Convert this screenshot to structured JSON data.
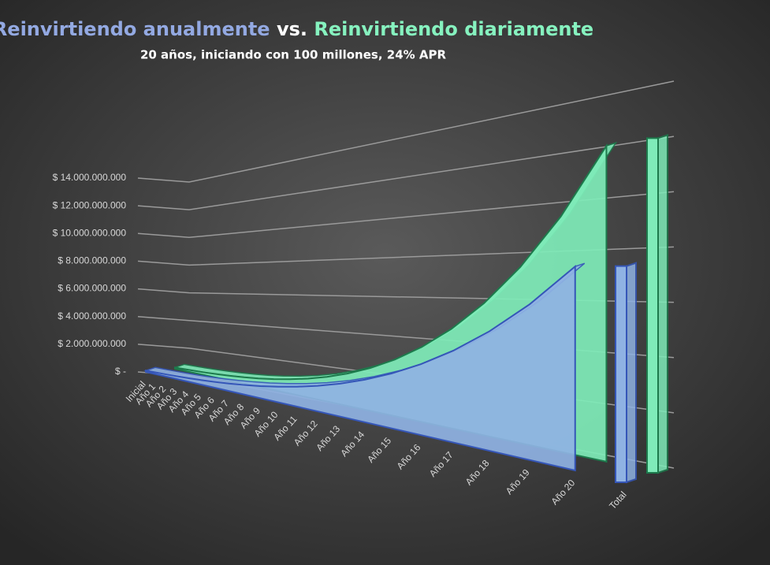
{
  "chart_data": {
    "type": "area3d",
    "title_parts": [
      "Reinvirtiendo anualmente",
      "vs.",
      "Reinvirtiendo diariamente"
    ],
    "subtitle": "20 años, iniciando con 100 millones, 24% APR",
    "categories": [
      "Inicial",
      "Año 1",
      "Año 2",
      "Año 3",
      "Año 4",
      "Año 5",
      "Año 6",
      "Año 7",
      "Año 8",
      "Año 9",
      "Año 10",
      "Año 11",
      "Año 12",
      "Año 13",
      "Año 14",
      "Año 15",
      "Año 16",
      "Año 17",
      "Año 18",
      "Año 19",
      "Año 20",
      "Total"
    ],
    "series": [
      {
        "color": "#8fb2e3",
        "edge_color": "#3556b8",
        "values": [
          100000000,
          124000000,
          154000000,
          191000000,
          236000000,
          293000000,
          364000000,
          451000000,
          559000000,
          693000000,
          859000000,
          1066000000,
          1321000000,
          1639000000,
          2032000000,
          2520000000,
          3124000000,
          3874000000,
          4804000000,
          5957000000,
          7386000000,
          7386000000
        ]
      },
      {
        "color": "#7febb9",
        "edge_color": "#1d7a4c",
        "values": [
          100000000,
          127100000,
          161600000,
          205400000,
          261100000,
          331900000,
          421900000,
          536300000,
          681700000,
          866500000,
          1101500000,
          1400200000,
          1779800000,
          2262400000,
          2875900000,
          3655700000,
          4647000000,
          5907100000,
          7508800000,
          9544800000,
          12133000000,
          12133000000
        ]
      }
    ],
    "ylim": [
      0,
      14000000000
    ],
    "yticks": [
      {
        "value": 0,
        "label": "$ -"
      },
      {
        "value": 2000000000,
        "label": "$ 2.000.000.000"
      },
      {
        "value": 4000000000,
        "label": "$ 4.000.000.000"
      },
      {
        "value": 6000000000,
        "label": "$ 6.000.000.000"
      },
      {
        "value": 8000000000,
        "label": "$ 8.000.000.000"
      },
      {
        "value": 10000000000,
        "label": "$ 10.000.000.000"
      },
      {
        "value": 12000000000,
        "label": "$ 12.000.000.000"
      },
      {
        "value": 14000000000,
        "label": "$ 14.000.000.000"
      }
    ],
    "grid": true
  }
}
